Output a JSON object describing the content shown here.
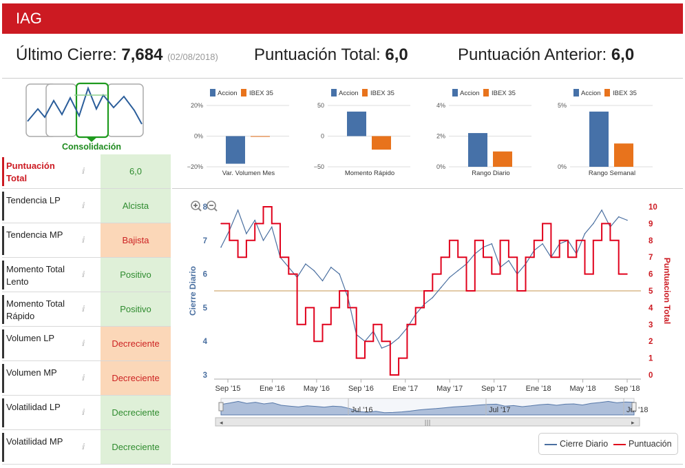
{
  "header": {
    "title": "IAG"
  },
  "summary": {
    "last_close_label": "Último Cierre:",
    "last_close_value": "7,684",
    "last_close_date": "(02/08/2018)",
    "total_score_label": "Puntuación Total:",
    "total_score_value": "6,0",
    "prev_score_label": "Puntuación Anterior:",
    "prev_score_value": "6,0"
  },
  "thumbnail": {
    "label": "Consolidación"
  },
  "indicators": [
    {
      "label": "Puntuación Total",
      "info_icon": "info-icon",
      "value": "6,0",
      "status": "positive"
    },
    {
      "label": "Tendencia LP",
      "info_icon": "info-icon",
      "value": "Alcista",
      "status": "positive"
    },
    {
      "label": "Tendencia MP",
      "info_icon": "info-icon",
      "value": "Bajista",
      "status": "negative"
    },
    {
      "label": "Momento Total Lento",
      "info_icon": "info-icon",
      "value": "Positivo",
      "status": "positive"
    },
    {
      "label": "Momento Total Rápido",
      "info_icon": "info-icon",
      "value": "Positivo",
      "status": "positive"
    },
    {
      "label": "Volumen LP",
      "info_icon": "info-icon",
      "value": "Decreciente",
      "status": "negative"
    },
    {
      "label": "Volumen MP",
      "info_icon": "info-icon",
      "value": "Decreciente",
      "status": "negative"
    },
    {
      "label": "Volatilidad LP",
      "info_icon": "info-icon",
      "value": "Decreciente",
      "status": "positive"
    },
    {
      "label": "Volatilidad MP",
      "info_icon": "info-icon",
      "value": "Decreciente",
      "status": "positive"
    }
  ],
  "colors": {
    "brand": "#cc1a22",
    "accion": "#4671a8",
    "ibex": "#e8731c",
    "score": "#e0001b",
    "close": "#4a6fa0",
    "ref_line": "#d9b98a"
  },
  "chart_data": [
    {
      "type": "bar",
      "legend": [
        "Accion",
        "IBEX 35"
      ],
      "title": "Var. Volumen Mes",
      "yticks": [
        "20%",
        "0%",
        "−20%"
      ],
      "ylim": [
        -20,
        20
      ],
      "values": [
        -18,
        0
      ]
    },
    {
      "type": "bar",
      "legend": [
        "Accion",
        "IBEX 35"
      ],
      "title": "Momento Rápido",
      "yticks": [
        "50",
        "0",
        "−50"
      ],
      "ylim": [
        -50,
        50
      ],
      "values": [
        40,
        -22
      ]
    },
    {
      "type": "bar",
      "legend": [
        "Accion",
        "IBEX 35"
      ],
      "title": "Rango Diario",
      "yticks": [
        "4%",
        "2%",
        "0%"
      ],
      "ylim": [
        0,
        4
      ],
      "values": [
        2.2,
        1.0
      ]
    },
    {
      "type": "bar",
      "legend": [
        "Accion",
        "IBEX 35"
      ],
      "title": "Rango Semanal",
      "yticks": [
        "5%",
        "0%"
      ],
      "ylim": [
        0,
        5
      ],
      "values": [
        4.5,
        1.9
      ]
    },
    {
      "type": "line",
      "ylabel_left": "Cierre Diario",
      "ylabel_right": "Puntuacion Total",
      "ylim_left": [
        3,
        8
      ],
      "ylim_right": [
        0,
        10
      ],
      "yticks_left": [
        "8",
        "7",
        "6",
        "5",
        "4",
        "3"
      ],
      "yticks_right": [
        "10",
        "9",
        "8",
        "7",
        "6",
        "5",
        "4",
        "3",
        "2",
        "1",
        "0"
      ],
      "xticks": [
        "Sep '15",
        "Ene '16",
        "May '16",
        "Sep '16",
        "Ene '17",
        "May '17",
        "Sep '17",
        "Ene '18",
        "May '18",
        "Sep '18"
      ],
      "reference_line": 5.5,
      "series": [
        {
          "name": "Cierre Diario",
          "axis": "left",
          "values": [
            6.8,
            7.3,
            7.9,
            7.2,
            7.6,
            7.0,
            7.4,
            6.5,
            6.2,
            5.9,
            6.3,
            6.1,
            5.8,
            6.2,
            6.0,
            5.3,
            4.2,
            4.0,
            4.3,
            3.8,
            3.9,
            4.1,
            4.4,
            4.8,
            5.1,
            5.3,
            5.6,
            5.9,
            6.1,
            6.3,
            6.6,
            6.8,
            6.9,
            6.2,
            6.4,
            6.0,
            6.3,
            6.7,
            6.9,
            6.5,
            6.9,
            7.0,
            6.6,
            7.2,
            7.5,
            7.9,
            7.4,
            7.7,
            7.6
          ]
        },
        {
          "name": "Puntuación",
          "axis": "right",
          "values": [
            9,
            8,
            7,
            8,
            9,
            10,
            9,
            7,
            6,
            3,
            4,
            2,
            3,
            4,
            5,
            4,
            1,
            2,
            3,
            2,
            0,
            1,
            3,
            4,
            5,
            6,
            7,
            8,
            7,
            5,
            8,
            7,
            6,
            8,
            7,
            5,
            7,
            8,
            9,
            7,
            8,
            7,
            8,
            6,
            8,
            9,
            8,
            6,
            6
          ]
        }
      ]
    }
  ],
  "zoom": {
    "in_icon": "zoom-in-icon",
    "out_icon": "zoom-out-icon"
  },
  "navigator": {
    "labels": [
      "Jul '16",
      "Jul '17",
      "Jul '18"
    ]
  },
  "legend": {
    "items": [
      "Cierre Diario",
      "Puntuación"
    ]
  }
}
